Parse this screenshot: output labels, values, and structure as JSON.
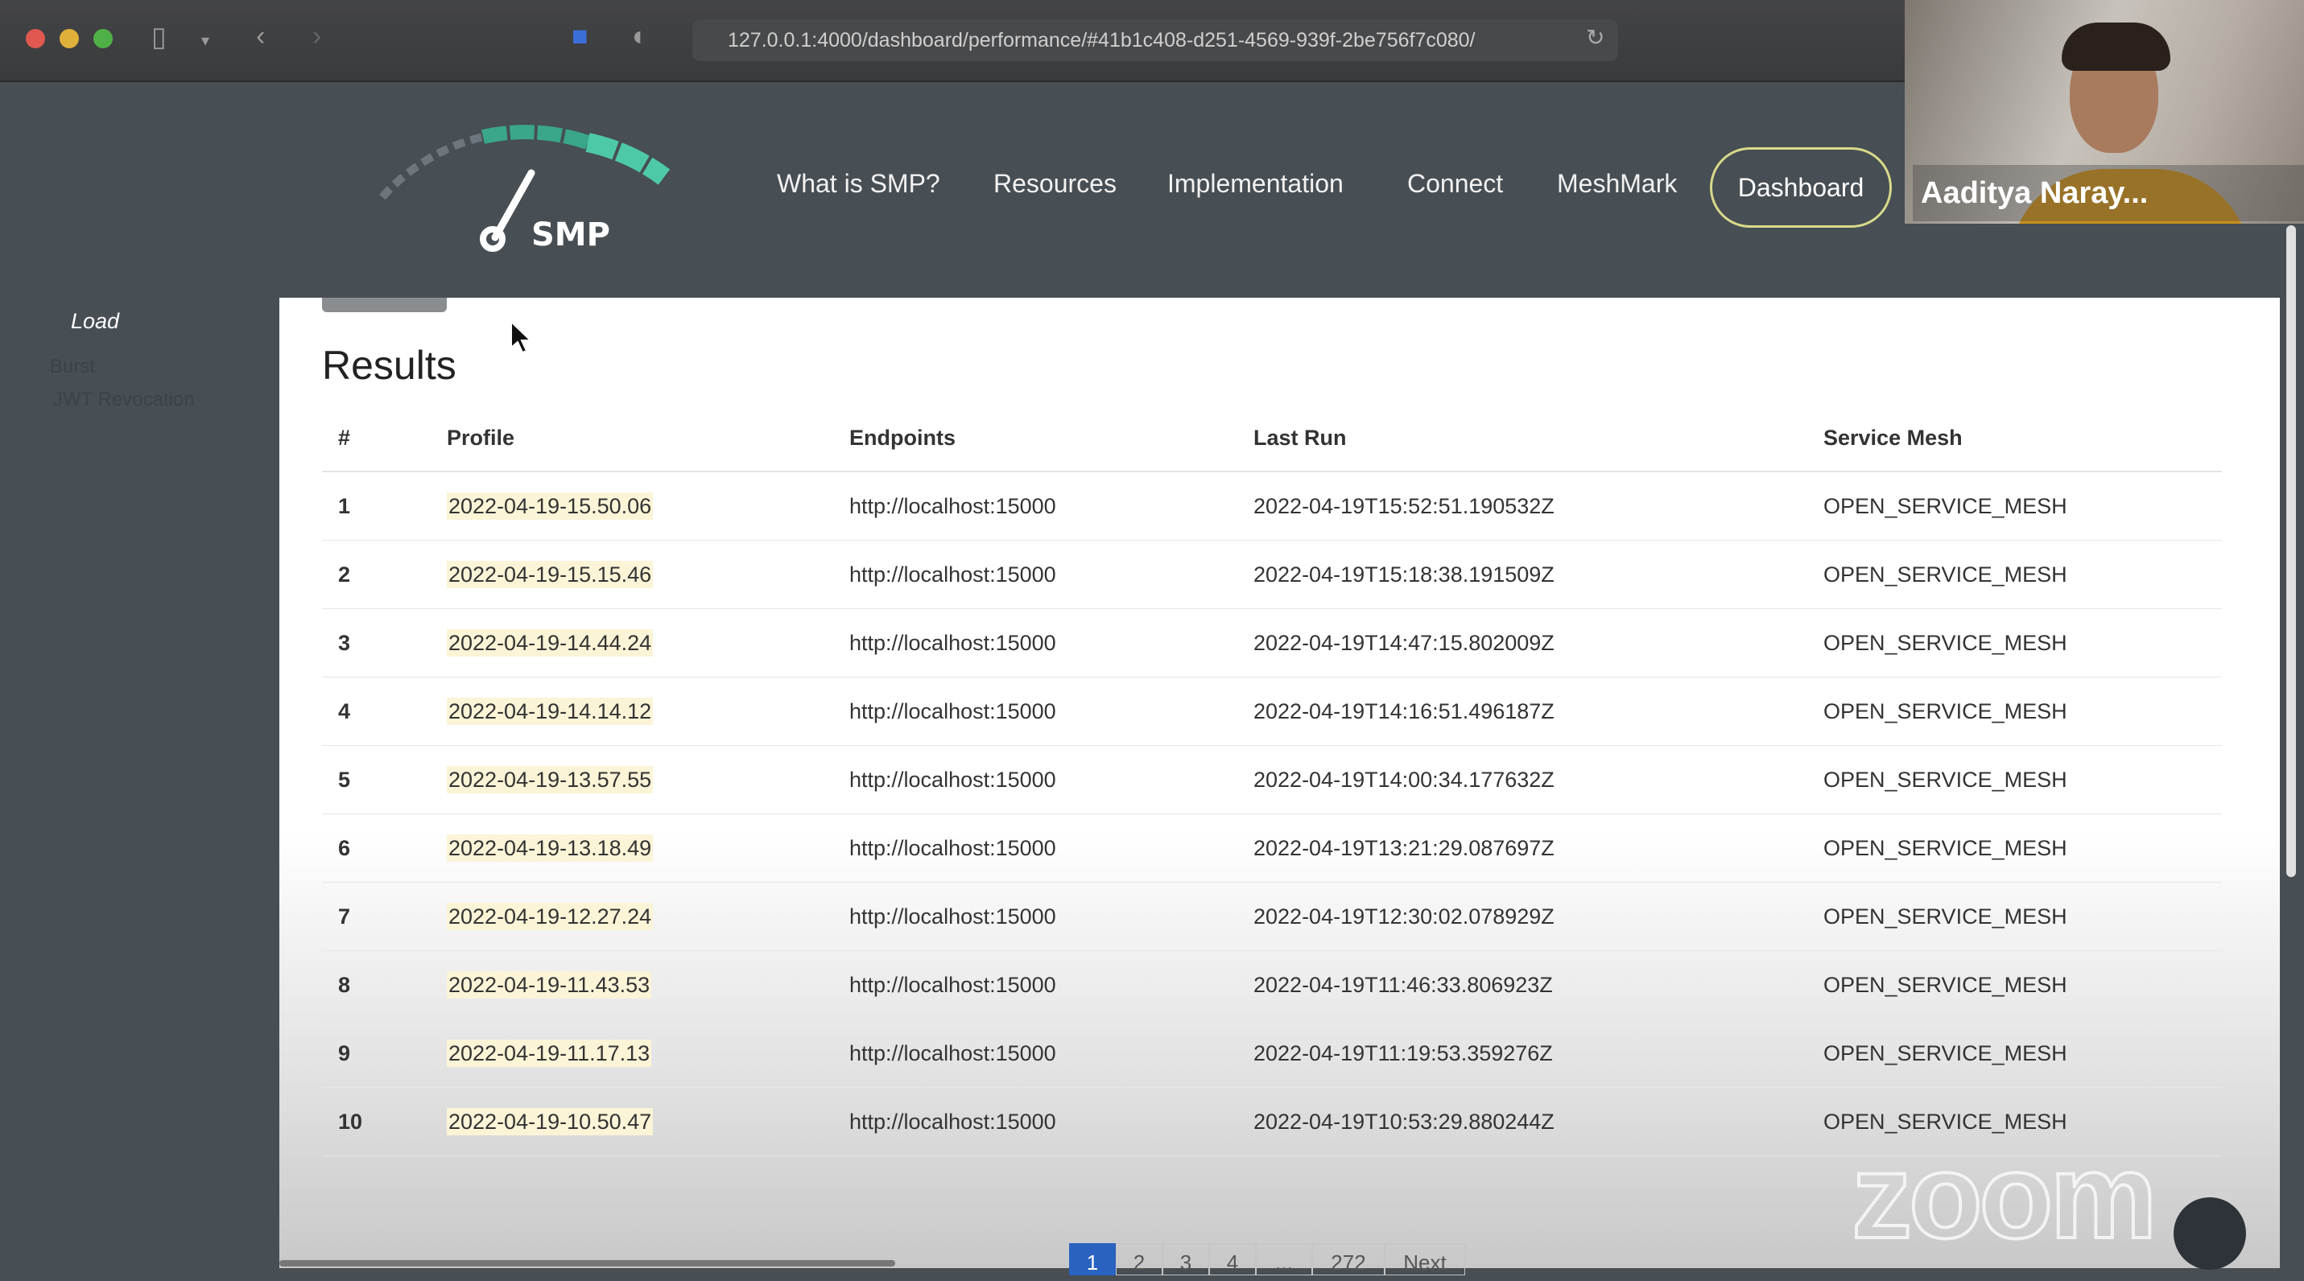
{
  "browser": {
    "url": "127.0.0.1:4000/dashboard/performance/#41b1c408-d251-4569-939f-2be756f7c080/"
  },
  "header": {
    "logo_text": "SMP",
    "nav": [
      "What is SMP?",
      "Resources",
      "Implementation",
      "Connect",
      "MeshMark"
    ],
    "dashboard_label": "Dashboard",
    "accent_color": "#4ec9a8"
  },
  "video": {
    "participant_name": "Aaditya Naray..."
  },
  "sidebar": {
    "items": [
      "Load",
      "Burst",
      "JWT Revocation"
    ]
  },
  "results": {
    "title": "Results",
    "columns": [
      "#",
      "Profile",
      "Endpoints",
      "Last Run",
      "Service Mesh"
    ],
    "rows": [
      [
        "1",
        "2022-04-19-15.50.06",
        "http://localhost:15000",
        "2022-04-19T15:52:51.190532Z",
        "OPEN_SERVICE_MESH"
      ],
      [
        "2",
        "2022-04-19-15.15.46",
        "http://localhost:15000",
        "2022-04-19T15:18:38.191509Z",
        "OPEN_SERVICE_MESH"
      ],
      [
        "3",
        "2022-04-19-14.44.24",
        "http://localhost:15000",
        "2022-04-19T14:47:15.802009Z",
        "OPEN_SERVICE_MESH"
      ],
      [
        "4",
        "2022-04-19-14.14.12",
        "http://localhost:15000",
        "2022-04-19T14:16:51.496187Z",
        "OPEN_SERVICE_MESH"
      ],
      [
        "5",
        "2022-04-19-13.57.55",
        "http://localhost:15000",
        "2022-04-19T14:00:34.177632Z",
        "OPEN_SERVICE_MESH"
      ],
      [
        "6",
        "2022-04-19-13.18.49",
        "http://localhost:15000",
        "2022-04-19T13:21:29.087697Z",
        "OPEN_SERVICE_MESH"
      ],
      [
        "7",
        "2022-04-19-12.27.24",
        "http://localhost:15000",
        "2022-04-19T12:30:02.078929Z",
        "OPEN_SERVICE_MESH"
      ],
      [
        "8",
        "2022-04-19-11.43.53",
        "http://localhost:15000",
        "2022-04-19T11:46:33.806923Z",
        "OPEN_SERVICE_MESH"
      ],
      [
        "9",
        "2022-04-19-11.17.13",
        "http://localhost:15000",
        "2022-04-19T11:19:53.359276Z",
        "OPEN_SERVICE_MESH"
      ],
      [
        "10",
        "2022-04-19-10.50.47",
        "http://localhost:15000",
        "2022-04-19T10:53:29.880244Z",
        "OPEN_SERVICE_MESH"
      ]
    ]
  },
  "pagination": {
    "pages": [
      "1",
      "2",
      "3",
      "4",
      "...",
      "272",
      "Next"
    ],
    "active": "1"
  },
  "watermark": "zoom"
}
